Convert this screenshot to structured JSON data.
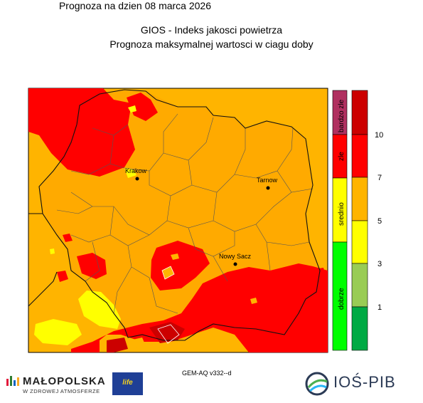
{
  "header": {
    "title": "GIOS - Indeks jakosci powietrza",
    "subtitle": "Prognoza maksymalnej wartosci w ciagu doby",
    "date_line": "Prognoza na dzien  08 marca 2026"
  },
  "cities": [
    {
      "name": "Krakow"
    },
    {
      "name": "Tarnow"
    },
    {
      "name": "Nowy Sacz"
    }
  ],
  "legend": {
    "categories": [
      {
        "label": "bardzo zle",
        "color": "#b03060"
      },
      {
        "label": "zle",
        "color": "#ff0000"
      },
      {
        "label": "srednio",
        "color": "#ffff00"
      },
      {
        "label": "dobrze",
        "color": "#00ff00"
      }
    ],
    "ticks": [
      "10",
      "7",
      "5",
      "3",
      "1"
    ],
    "colors": [
      "#cc0000",
      "#ff0000",
      "#ffb400",
      "#ffff00",
      "#99cc55",
      "#00aa44"
    ]
  },
  "footer": {
    "model": "GEM-AQ v332--d",
    "malopolska_name": "MAŁOPOLSKA",
    "malopolska_tagline": "W ZDROWEJ ATMOSFERZE",
    "eu_logo_text": "life",
    "ios_name": "IOŚ-PIB"
  }
}
